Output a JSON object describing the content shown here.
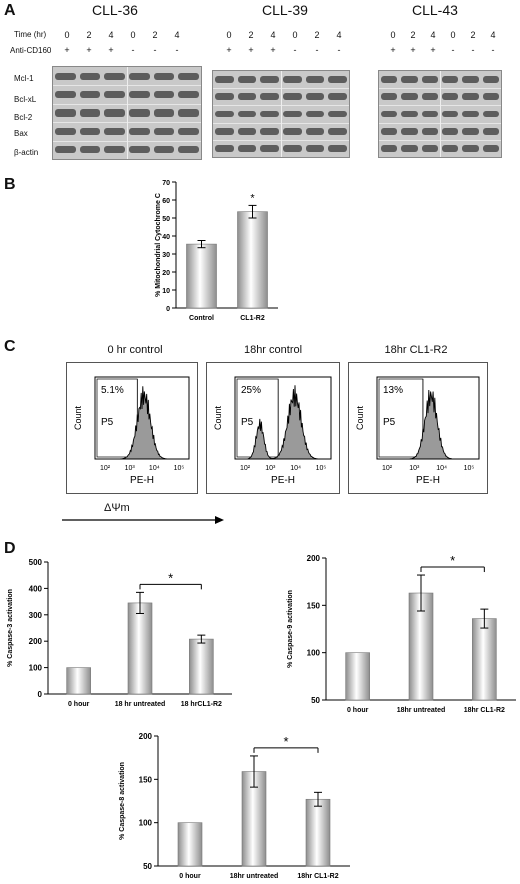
{
  "panelA": {
    "letter": "A",
    "blots": [
      {
        "title": "CLL-36",
        "times": [
          "0",
          "2",
          "4",
          "0",
          "2",
          "4"
        ],
        "cd160": [
          "+",
          "+",
          "+",
          "-",
          "-",
          "-"
        ]
      },
      {
        "title": "CLL-39",
        "times": [
          "0",
          "2",
          "4",
          "0",
          "2",
          "4"
        ],
        "cd160": [
          "+",
          "+",
          "+",
          "-",
          "-",
          "-"
        ]
      },
      {
        "title": "CLL-43",
        "times": [
          "0",
          "2",
          "4",
          "0",
          "2",
          "4"
        ],
        "cd160": [
          "+",
          "+",
          "+",
          "-",
          "-",
          "-"
        ]
      }
    ],
    "time_label": "Time (hr)",
    "cd160_label": "Anti-CD160",
    "bands": [
      "Mcl-1",
      "Bcl-xL",
      "Bcl-2",
      "Bax",
      "β-actin"
    ]
  },
  "panelB": {
    "letter": "B",
    "chart_data": {
      "type": "bar",
      "categories": [
        "Control",
        "CL1-R2"
      ],
      "values": [
        35.5,
        53.5
      ],
      "errors": [
        2,
        3.5
      ],
      "ylabel": "% Mitochondrial Cytochrome C",
      "ylim": [
        0,
        70
      ],
      "yticks": [
        "0",
        "10",
        "20",
        "30",
        "40",
        "50",
        "60",
        "70"
      ],
      "annotation": "*"
    }
  },
  "panelC": {
    "letter": "C",
    "plots": [
      {
        "title": "0 hr control",
        "pct": "5.1%",
        "gate": "P5",
        "ylabel": "Count",
        "xlabel": "PE-H"
      },
      {
        "title": "18hr control",
        "pct": "25%",
        "gate": "P5",
        "ylabel": "Count",
        "xlabel": "PE-H"
      },
      {
        "title": "18hr CL1-R2",
        "pct": "13%",
        "gate": "P5",
        "ylabel": "Count",
        "xlabel": "PE-H"
      }
    ],
    "xticks": [
      "10²",
      "10³",
      "10⁴",
      "10⁵"
    ],
    "arrow_label": "ΔΨm"
  },
  "panelD": {
    "letter": "D",
    "charts": [
      {
        "type": "bar",
        "ylabel": "% Caspase-3 activation",
        "categories": [
          "0 hour",
          "18 hr untreated",
          "18 hrCL1-R2"
        ],
        "values": [
          100,
          345,
          208
        ],
        "errors": [
          0,
          40,
          15
        ],
        "ylim": [
          0,
          500
        ],
        "yticks": [
          "0",
          "100",
          "200",
          "300",
          "400",
          "500"
        ],
        "annotation": "*"
      },
      {
        "type": "bar",
        "ylabel": "% Caspase-9 activation",
        "categories": [
          "0 hour",
          "18hr untreated",
          "18hr CL1-R2"
        ],
        "values": [
          100,
          163,
          136
        ],
        "errors": [
          0,
          19,
          10
        ],
        "ylim": [
          50,
          200
        ],
        "yticks": [
          "50",
          "100",
          "150",
          "200"
        ],
        "annotation": "*"
      },
      {
        "type": "bar",
        "ylabel": "% Caspase-8 activation",
        "categories": [
          "0 hour",
          "18hr untreated",
          "18hr CL1-R2"
        ],
        "values": [
          100,
          159,
          127
        ],
        "errors": [
          0,
          18,
          8
        ],
        "ylim": [
          50,
          200
        ],
        "yticks": [
          "50",
          "100",
          "150",
          "200"
        ],
        "annotation": "*"
      }
    ]
  }
}
